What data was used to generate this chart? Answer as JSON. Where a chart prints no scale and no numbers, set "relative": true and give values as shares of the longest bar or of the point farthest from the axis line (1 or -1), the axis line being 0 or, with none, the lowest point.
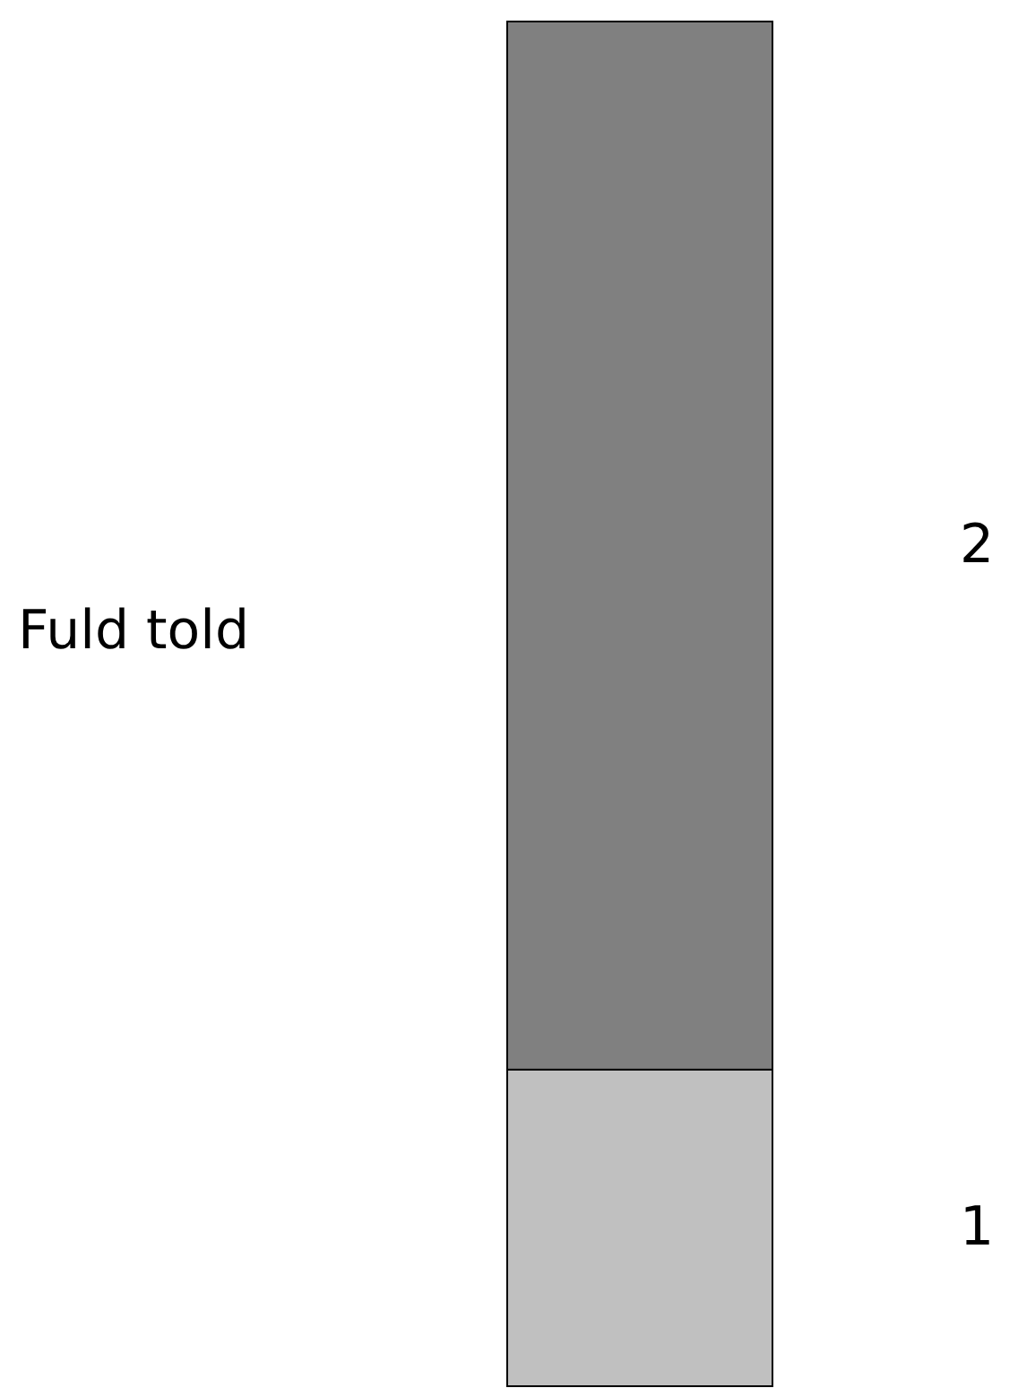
{
  "chart_data": {
    "type": "bar",
    "stacked": true,
    "relative": true,
    "ylabel": "Fuld told",
    "categories": [
      null
    ],
    "series": [
      {
        "name": "1",
        "color": "#c0c0c0",
        "values": [
          0.232
        ]
      },
      {
        "name": "2",
        "color": "#808080",
        "values": [
          0.768
        ]
      }
    ]
  }
}
